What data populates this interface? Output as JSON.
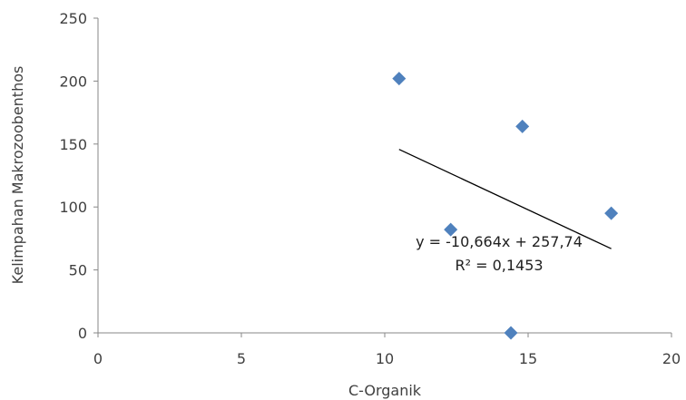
{
  "chart_data": {
    "type": "scatter",
    "xlabel": "C-Organik",
    "ylabel": "Kelimpahan Makrozoobenthos",
    "xlim": [
      0,
      20
    ],
    "ylim": [
      0,
      250
    ],
    "x_ticks": [
      "0",
      "5",
      "10",
      "15",
      "20"
    ],
    "y_ticks": [
      "0",
      "50",
      "100",
      "150",
      "200",
      "250"
    ],
    "grid": false,
    "marker": "diamond",
    "marker_color": "#4F81BD",
    "series": [
      {
        "points": [
          {
            "x": 10.5,
            "y": 202
          },
          {
            "x": 14.8,
            "y": 164
          },
          {
            "x": 12.3,
            "y": 82
          },
          {
            "x": 17.9,
            "y": 95
          },
          {
            "x": 14.4,
            "y": 0
          }
        ]
      }
    ],
    "trendline": {
      "type": "linear",
      "x_range": [
        10.5,
        17.9
      ],
      "slope": -10.664,
      "intercept": 257.74,
      "color": "#000000",
      "equation_label": "y = -10,664x + 257,74",
      "r2_label": "R² = 0,1453"
    }
  }
}
